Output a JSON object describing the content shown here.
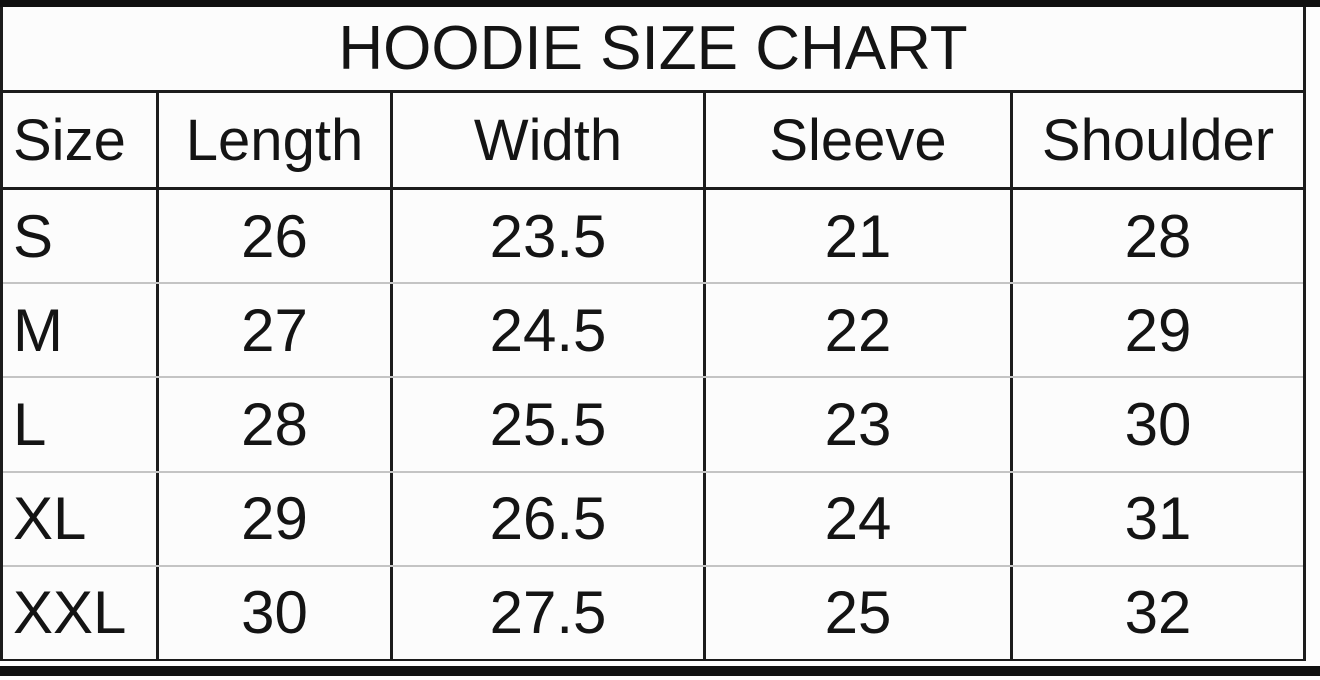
{
  "chart_data": {
    "type": "table",
    "title": "HOODIE SIZE CHART",
    "columns": [
      "Size",
      "Length",
      "Width",
      "Sleeve",
      "Shoulder"
    ],
    "rows": [
      [
        "S",
        "26",
        "23.5",
        "21",
        "28"
      ],
      [
        "M",
        "27",
        "24.5",
        "22",
        "29"
      ],
      [
        "L",
        "28",
        "25.5",
        "23",
        "30"
      ],
      [
        "XL",
        "29",
        "26.5",
        "24",
        "31"
      ],
      [
        "XXL",
        "30",
        "27.5",
        "25",
        "32"
      ]
    ]
  },
  "colors": {
    "background": "#fdfdfd",
    "grid_dark": "#1c1c1c",
    "row_separator": "#c4c4c4",
    "text": "#141414"
  }
}
